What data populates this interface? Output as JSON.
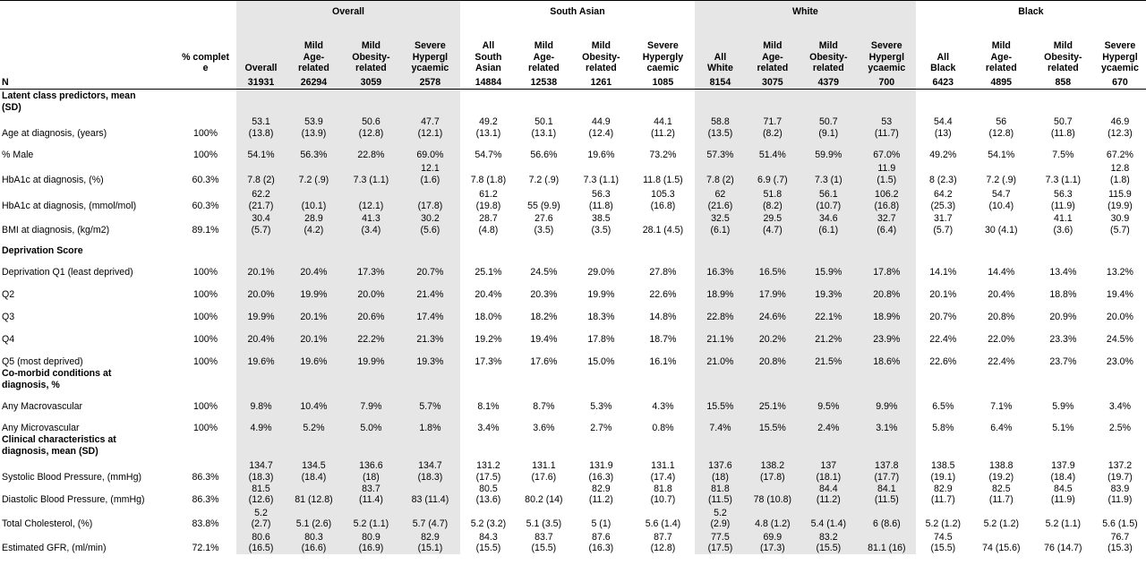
{
  "groups": [
    "",
    "Overall",
    "South Asian",
    "White",
    "Black"
  ],
  "header": [
    "",
    "% complet\ne",
    "Overall",
    "Mild\nAge-\nrelated",
    "Mild\nObesity-\nrelated",
    "Severe\nHypergl\nycaemic",
    "All\nSouth\nAsian",
    "Mild\nAge-\nrelated",
    "Mild\nObesity-\nrelated",
    "Severe\nHypergly\ncaemic",
    "All\nWhite",
    "Mild\nAge-\nrelated",
    "Mild\nObesity-\nrelated",
    "Severe\nHypergl\nycaemic",
    "All\nBlack",
    "Mild\nAge-\nrelated",
    "Mild\nObesity-\nrelated",
    "Severe\nHypergl\nycaemic"
  ],
  "n_row": [
    "N",
    "",
    "31931",
    "26294",
    "3059",
    "2578",
    "14884",
    "12538",
    "1261",
    "1085",
    "8154",
    "3075",
    "4379",
    "700",
    "6423",
    "4895",
    "858",
    "670"
  ],
  "rows": [
    {
      "section": true,
      "h": 27,
      "cells": [
        "Latent class predictors, mean\n(SD)",
        "",
        "",
        "",
        "",
        "",
        "",
        "",
        "",
        "",
        "",
        "",
        "",
        "",
        "",
        "",
        "",
        ""
      ]
    },
    {
      "h": 29,
      "cells": [
        "Age at diagnosis, (years)",
        "100%",
        "53.1\n(13.8)",
        "53.9\n(13.9)",
        "50.6\n(12.8)",
        "47.7\n(12.1)",
        "49.2\n(13.1)",
        "50.1\n(13.1)",
        "44.9\n(12.4)",
        "44.1\n(11.2)",
        "58.8\n(13.5)",
        "71.7\n(8.2)",
        "50.7\n(9.1)",
        "53\n(11.7)",
        "54.4\n(13)",
        "56\n(12.8)",
        "50.7\n(11.8)",
        "46.9\n(12.3)"
      ]
    },
    {
      "h": 24,
      "cells": [
        "% Male",
        "100%",
        "54.1%",
        "56.3%",
        "22.8%",
        "69.0%",
        "54.7%",
        "56.6%",
        "19.6%",
        "73.2%",
        "57.3%",
        "51.4%",
        "59.9%",
        "67.0%",
        "49.2%",
        "54.1%",
        "7.5%",
        "67.2%"
      ]
    },
    {
      "h": 28,
      "cells": [
        "HbA1c at diagnosis, (%)",
        "60.3%",
        "7.8 (2)",
        "7.2 (.9)",
        "7.3 (1.1)",
        "12.1\n(1.6)",
        "7.8 (1.8)",
        "7.2 (.9)",
        "7.3 (1.1)",
        "11.8 (1.5)",
        "7.8 (2)",
        "6.9 (.7)",
        "7.3 (1)",
        "11.9\n(1.5)",
        "8 (2.3)",
        "7.2 (.9)",
        "7.3 (1.1)",
        "12.8\n(1.8)"
      ]
    },
    {
      "h": 29,
      "cells": [
        "HbA1c at diagnosis, (mmol/mol)",
        "60.3%",
        "62.2\n(21.7)",
        "(10.1)",
        "(12.1)",
        "(17.8)",
        "61.2\n(19.8)",
        "55 (9.9)",
        "56.3\n(11.8)",
        "105.3\n(16.8)",
        "62\n(21.6)",
        "51.8\n(8.2)",
        "56.1\n(10.7)",
        "106.2\n(16.8)",
        "64.2\n(25.3)",
        "54.7\n(10.4)",
        "56.3\n(11.9)",
        "115.9\n(19.9)"
      ]
    },
    {
      "h": 27,
      "cells": [
        "BMI at diagnosis, (kg/m2)",
        "89.1%",
        "30.4\n(5.7)",
        "28.9\n(4.2)",
        "41.3\n(3.4)",
        "30.2\n(5.6)",
        "28.7\n(4.8)",
        "27.6\n(3.5)",
        "38.5\n(3.5)",
        "28.1 (4.5)",
        "32.5\n(6.1)",
        "29.5\n(4.7)",
        "34.6\n(6.1)",
        "32.7\n(6.4)",
        "31.7\n(5.7)",
        "30 (4.1)",
        "41.1\n(3.6)",
        "30.9\n(5.7)"
      ]
    },
    {
      "section": true,
      "h": 23,
      "cells": [
        "Deprivation Score",
        "",
        "",
        "",
        "",
        "",
        "",
        "",
        "",
        "",
        "",
        "",
        "",
        "",
        "",
        "",
        "",
        ""
      ]
    },
    {
      "h": 24,
      "cells": [
        "Deprivation Q1 (least deprived)",
        "100%",
        "20.1%",
        "20.4%",
        "17.3%",
        "20.7%",
        "25.1%",
        "24.5%",
        "29.0%",
        "27.8%",
        "16.3%",
        "16.5%",
        "15.9%",
        "17.8%",
        "14.1%",
        "14.4%",
        "13.4%",
        "13.2%"
      ]
    },
    {
      "h": 25,
      "cells": [
        "Q2",
        "100%",
        "20.0%",
        "19.9%",
        "20.0%",
        "21.4%",
        "20.4%",
        "20.3%",
        "19.9%",
        "22.6%",
        "18.9%",
        "17.9%",
        "19.3%",
        "20.8%",
        "20.1%",
        "20.4%",
        "18.8%",
        "19.4%"
      ]
    },
    {
      "h": 25,
      "cells": [
        "Q3",
        "100%",
        "19.9%",
        "20.1%",
        "20.6%",
        "17.4%",
        "18.0%",
        "18.2%",
        "18.3%",
        "14.8%",
        "22.8%",
        "24.6%",
        "22.1%",
        "18.9%",
        "20.7%",
        "20.8%",
        "20.9%",
        "20.0%"
      ]
    },
    {
      "h": 25,
      "cells": [
        "Q4",
        "100%",
        "20.4%",
        "20.1%",
        "22.2%",
        "21.3%",
        "19.2%",
        "19.4%",
        "17.8%",
        "18.7%",
        "21.1%",
        "20.2%",
        "21.2%",
        "23.9%",
        "22.4%",
        "22.0%",
        "23.3%",
        "24.5%"
      ]
    },
    {
      "h": 25,
      "cells": [
        "Q5 (most deprived)",
        "100%",
        "19.6%",
        "19.6%",
        "19.9%",
        "19.3%",
        "17.3%",
        "17.6%",
        "15.0%",
        "16.1%",
        "21.0%",
        "20.8%",
        "21.5%",
        "18.6%",
        "22.6%",
        "22.4%",
        "23.7%",
        "23.0%"
      ]
    },
    {
      "section": true,
      "h": 26,
      "cells": [
        "Co-morbid conditions at\ndiagnosis, %",
        "",
        "",
        "",
        "",
        "",
        "",
        "",
        "",
        "",
        "",
        "",
        "",
        "",
        "",
        "",
        "",
        ""
      ]
    },
    {
      "h": 24,
      "cells": [
        "Any Macrovascular",
        "100%",
        "9.8%",
        "10.4%",
        "7.9%",
        "5.7%",
        "8.1%",
        "8.7%",
        "5.3%",
        "4.3%",
        "15.5%",
        "25.1%",
        "9.5%",
        "9.9%",
        "6.5%",
        "7.1%",
        "5.9%",
        "3.4%"
      ]
    },
    {
      "h": 24,
      "cells": [
        "Any Microvascular",
        "100%",
        "4.9%",
        "5.2%",
        "5.0%",
        "1.8%",
        "3.4%",
        "3.6%",
        "2.7%",
        "0.8%",
        "7.4%",
        "15.5%",
        "2.4%",
        "3.1%",
        "5.8%",
        "6.4%",
        "5.1%",
        "2.5%"
      ]
    },
    {
      "section": true,
      "h": 26,
      "cells": [
        "Clinical characteristics at\ndiagnosis, mean (SD)",
        "",
        "",
        "",
        "",
        "",
        "",
        "",
        "",
        "",
        "",
        "",
        "",
        "",
        "",
        "",
        "",
        ""
      ]
    },
    {
      "h": 29,
      "cells": [
        "Systolic Blood Pressure, (mmHg)",
        "86.3%",
        "134.7\n(18.3)",
        "134.5\n(18.4)",
        "136.6\n(18)",
        "134.7\n(18.3)",
        "131.2\n(17.5)",
        "131.1\n(17.6)",
        "131.9\n(16.3)",
        "131.1\n(17.4)",
        "137.6\n(18)",
        "138.2\n(17.8)",
        "137\n(18.1)",
        "137.8\n(17.7)",
        "138.5\n(19.1)",
        "138.8\n(19.2)",
        "137.9\n(18.4)",
        "137.2\n(19.7)"
      ]
    },
    {
      "h": 25,
      "cells": [
        "Diastolic Blood Pressure, (mmHg)",
        "86.3%",
        "81.5\n(12.6)",
        "81 (12.8)",
        "83.7\n(11.4)",
        "83 (11.4)",
        "80.5\n(13.6)",
        "80.2 (14)",
        "82.9\n(11.2)",
        "81.8\n(10.7)",
        "81.8\n(11.5)",
        "78 (10.8)",
        "84.4\n(11.2)",
        "84.1\n(11.5)",
        "82.9\n(11.7)",
        "82.5\n(11.7)",
        "84.5\n(11.9)",
        "83.9\n(11.9)"
      ]
    },
    {
      "h": 27,
      "cells": [
        "Total Cholesterol, (%)",
        "83.8%",
        "5.2\n(2.7)",
        "5.1 (2.6)",
        "5.2 (1.1)",
        "5.7 (4.7)",
        "5.2 (3.2)",
        "5.1 (3.5)",
        "5 (1)",
        "5.6 (1.4)",
        "5.2\n(2.9)",
        "4.8 (1.2)",
        "5.4 (1.4)",
        "6 (8.6)",
        "5.2 (1.2)",
        "5.2 (1.2)",
        "5.2 (1.1)",
        "5.6 (1.5)"
      ]
    },
    {
      "h": 27,
      "cells": [
        "Estimated GFR, (ml/min)",
        "72.1%",
        "80.6\n(16.5)",
        "80.3\n(16.6)",
        "80.9\n(16.9)",
        "82.9\n(15.1)",
        "84.3\n(15.5)",
        "83.7\n(15.5)",
        "87.6\n(16.3)",
        "87.7\n(12.8)",
        "77.5\n(17.5)",
        "69.9\n(17.3)",
        "83.2\n(15.5)",
        "81.1 (16)",
        "74.5\n(15.5)",
        "74 (15.6)",
        "76 (14.7)",
        "76.7\n(15.3)"
      ]
    }
  ]
}
